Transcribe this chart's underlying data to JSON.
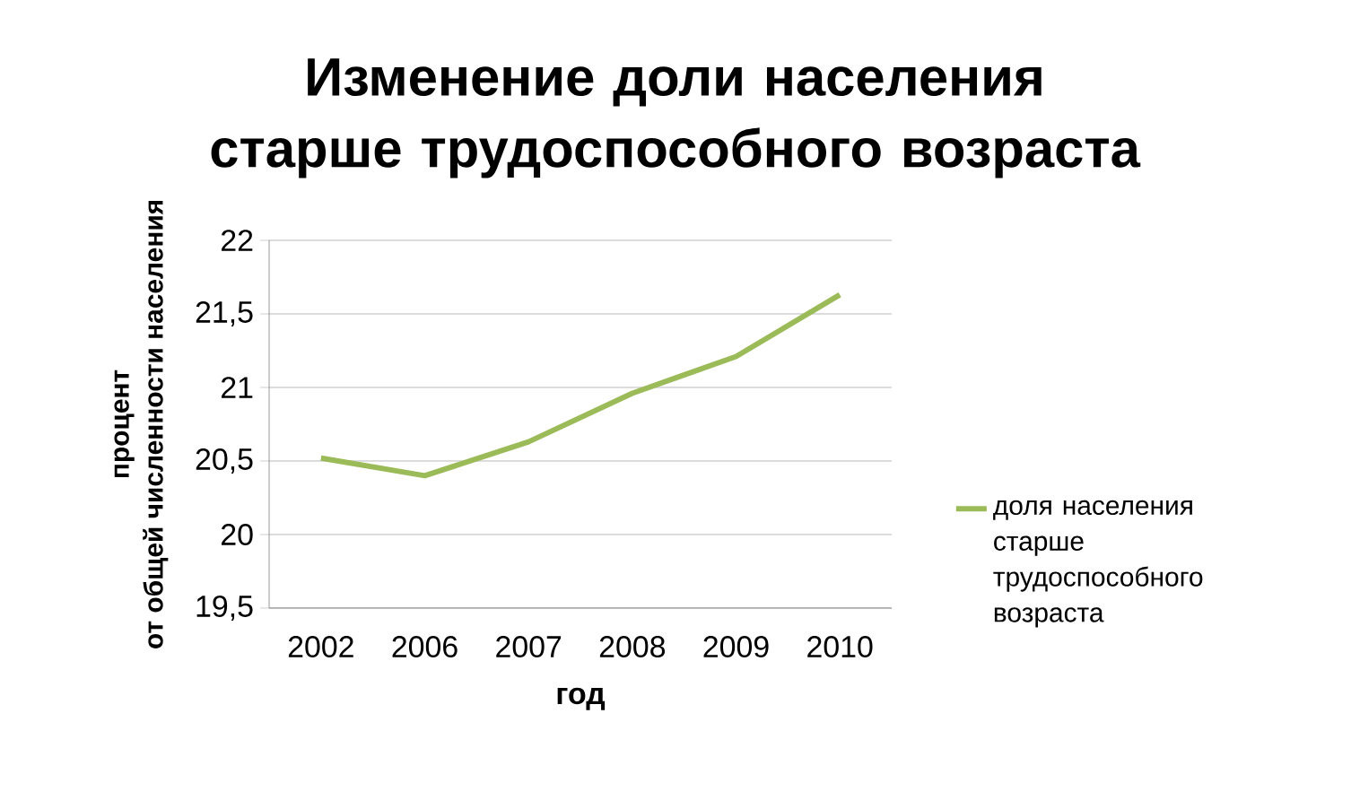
{
  "chart_data": {
    "type": "line",
    "title": "Изменение доли населения старше трудоспособного возраста",
    "xlabel": "год",
    "ylabel": "процент\nот общей численности населения",
    "categories": [
      "2002",
      "2006",
      "2007",
      "2008",
      "2009",
      "2010"
    ],
    "series": [
      {
        "name": "доля населения старше трудоспособного возраста",
        "color": "#9bbb59",
        "values": [
          20.52,
          20.4,
          20.63,
          20.96,
          21.21,
          21.63
        ]
      }
    ],
    "ylim": [
      19.5,
      22
    ],
    "yticks": [
      {
        "value": 19.5,
        "label": "19,5"
      },
      20,
      {
        "value": 20.5,
        "label": "20,5"
      },
      21,
      {
        "value": 21.5,
        "label": "21,5"
      },
      22
    ],
    "grid": "y",
    "legend": "right",
    "marker": "none",
    "line_style": "solid"
  }
}
